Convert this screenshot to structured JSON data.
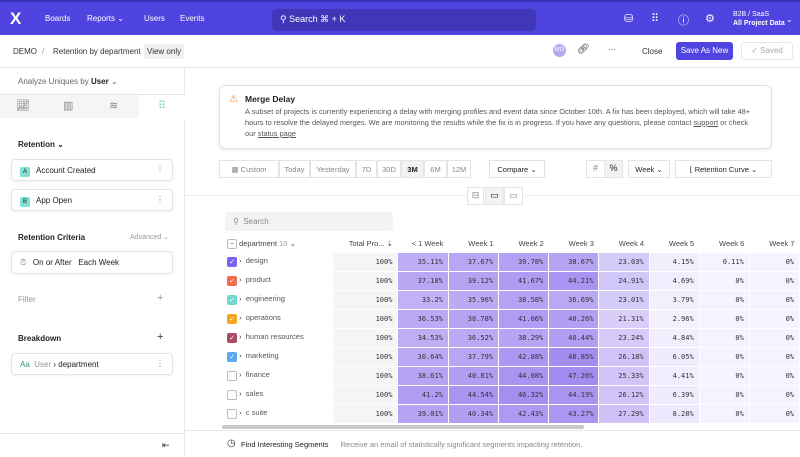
{
  "topbar": {
    "logo": "X",
    "nav": [
      "Boards",
      "Reports",
      "Users",
      "Events"
    ],
    "search_placeholder": "Search ⌘ + K",
    "project_name": "B2B / SaaS",
    "project_data": "All Project Data"
  },
  "header": {
    "breadcrumb_root": "DEMO",
    "breadcrumb_sep": "/",
    "report_title": "Retention by department",
    "view_badge": "View only",
    "avatar": "MG",
    "more": "···",
    "close": "Close",
    "save_as_new": "Save As New",
    "saved": "Saved"
  },
  "sidebar": {
    "analyze_label": "Analyze Uniques by",
    "analyze_value": "User",
    "retention_title": "Retention",
    "events": [
      {
        "badge": "A",
        "label": "Account Created"
      },
      {
        "badge": "B",
        "label": "App Open"
      }
    ],
    "criteria_title": "Retention Criteria",
    "advanced": "Advanced",
    "criteria_value1": "On or After",
    "criteria_value2": "Each Week",
    "filter": "Filter",
    "breakdown": "Breakdown",
    "breakdown_type": "Aa",
    "breakdown_entity": "User",
    "breakdown_prop": "department"
  },
  "alert": {
    "title": "Merge Delay",
    "text": "A subset of projects is currently experiencing a delay with merging profiles and event data since October 10th. A fix has been deployed, which will take 48+ hours to resolve the delayed merges. We are monitoring the results while the fix is in progress. If you have any questions, please contact ",
    "support": "support",
    "text2": " or check our ",
    "status": "status page"
  },
  "controls": {
    "ranges": [
      "Custom",
      "Today",
      "Yesterday",
      "7D",
      "30D",
      "3M",
      "6M",
      "12M"
    ],
    "selected_range": "3M",
    "compare": "Compare",
    "unit": "Week",
    "chart_type": "Retention Curve"
  },
  "table": {
    "search_placeholder": "Search",
    "group_header": "department",
    "group_count": "10",
    "columns": [
      "Total Pro...",
      "< 1 Week",
      "Week 1",
      "Week 2",
      "Week 3",
      "Week 4",
      "Week 5",
      "Week 6",
      "Week 7"
    ],
    "rows": [
      {
        "name": "design",
        "color": "#7b61f0",
        "checked": true,
        "values": [
          "100%",
          "35.11%",
          "37.67%",
          "39.78%",
          "38.67%",
          "23.03%",
          "4.15%",
          "0.11%",
          "0%"
        ]
      },
      {
        "name": "product",
        "color": "#f26b4a",
        "checked": true,
        "values": [
          "100%",
          "37.18%",
          "39.12%",
          "41.67%",
          "44.21%",
          "24.91%",
          "4.69%",
          "0%",
          "0%"
        ]
      },
      {
        "name": "engineering",
        "color": "#72d9d0",
        "checked": true,
        "values": [
          "100%",
          "33.2%",
          "35.96%",
          "38.58%",
          "36.69%",
          "23.01%",
          "3.79%",
          "0%",
          "0%"
        ]
      },
      {
        "name": "operations",
        "color": "#f5a623",
        "checked": true,
        "values": [
          "100%",
          "36.53%",
          "38.78%",
          "41.06%",
          "40.26%",
          "21.31%",
          "2.96%",
          "0%",
          "0%"
        ]
      },
      {
        "name": "human resources",
        "color": "#ad4a62",
        "checked": true,
        "values": [
          "100%",
          "34.53%",
          "36.52%",
          "38.29%",
          "40.44%",
          "23.24%",
          "4.84%",
          "0%",
          "0%"
        ]
      },
      {
        "name": "marketing",
        "color": "#5aaaf2",
        "checked": true,
        "values": [
          "100%",
          "36.64%",
          "37.79%",
          "42.88%",
          "46.85%",
          "26.18%",
          "6.05%",
          "0%",
          "0%"
        ]
      },
      {
        "name": "finance",
        "checked": false,
        "values": [
          "100%",
          "38.61%",
          "40.81%",
          "44.08%",
          "47.26%",
          "25.33%",
          "4.41%",
          "0%",
          "0%"
        ]
      },
      {
        "name": "sales",
        "checked": false,
        "values": [
          "100%",
          "41.2%",
          "44.54%",
          "46.32%",
          "44.19%",
          "26.12%",
          "6.39%",
          "0%",
          "0%"
        ]
      },
      {
        "name": "c suite",
        "checked": false,
        "values": [
          "100%",
          "39.01%",
          "40.34%",
          "42.43%",
          "43.27%",
          "27.29%",
          "8.28%",
          "0%",
          "0%"
        ]
      }
    ]
  },
  "footer": {
    "title": "Find Interesting Segments",
    "desc": "Receive an email of statistically significant segments impacting retention."
  }
}
